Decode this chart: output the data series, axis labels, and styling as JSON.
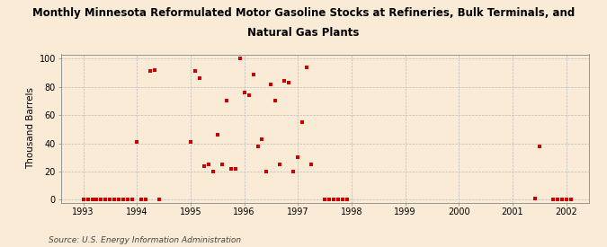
{
  "title": "Monthly Minnesota Reformulated Motor Gasoline Stocks at Refineries, Bulk Terminals, and Natural Gas Plants",
  "ylabel": "Thousand Barrels",
  "source": "Source: U.S. Energy Information Administration",
  "background_color": "#faebd7",
  "plot_bg_color": "#faebd7",
  "marker_color": "#cc0000",
  "grid_color": "#bbbbbb",
  "xlim": [
    1992.58,
    2002.42
  ],
  "ylim": [
    -2,
    103
  ],
  "yticks": [
    0,
    20,
    40,
    60,
    80,
    100
  ],
  "xticks": [
    1993,
    1994,
    1995,
    1996,
    1997,
    1998,
    1999,
    2000,
    2001,
    2002
  ],
  "data_x": [
    1993.0,
    1993.083,
    1993.167,
    1993.25,
    1993.333,
    1993.417,
    1993.5,
    1993.583,
    1993.667,
    1993.75,
    1993.833,
    1993.917,
    1994.0,
    1994.083,
    1994.167,
    1994.25,
    1994.333,
    1994.417,
    1995.0,
    1995.083,
    1995.167,
    1995.25,
    1995.333,
    1995.417,
    1995.5,
    1995.583,
    1995.667,
    1995.75,
    1995.833,
    1995.917,
    1996.0,
    1996.083,
    1996.167,
    1996.25,
    1996.333,
    1996.417,
    1996.5,
    1996.583,
    1996.667,
    1996.75,
    1996.833,
    1996.917,
    1997.0,
    1997.083,
    1997.167,
    1997.25,
    1997.5,
    1997.583,
    1997.667,
    1997.75,
    1997.833,
    1997.917,
    2001.417,
    2001.5,
    2001.75,
    2001.833,
    2001.917,
    2002.0,
    2002.083
  ],
  "data_y": [
    0,
    0,
    0,
    0,
    0,
    0,
    0,
    0,
    0,
    0,
    0,
    0,
    41,
    0,
    0,
    91,
    92,
    0,
    41,
    91,
    86,
    24,
    25,
    20,
    46,
    25,
    70,
    22,
    22,
    100,
    76,
    74,
    89,
    38,
    43,
    20,
    82,
    70,
    25,
    84,
    83,
    20,
    30,
    55,
    94,
    25,
    0,
    0,
    0,
    0,
    0,
    0,
    1,
    38,
    0,
    0,
    0,
    0,
    0
  ]
}
